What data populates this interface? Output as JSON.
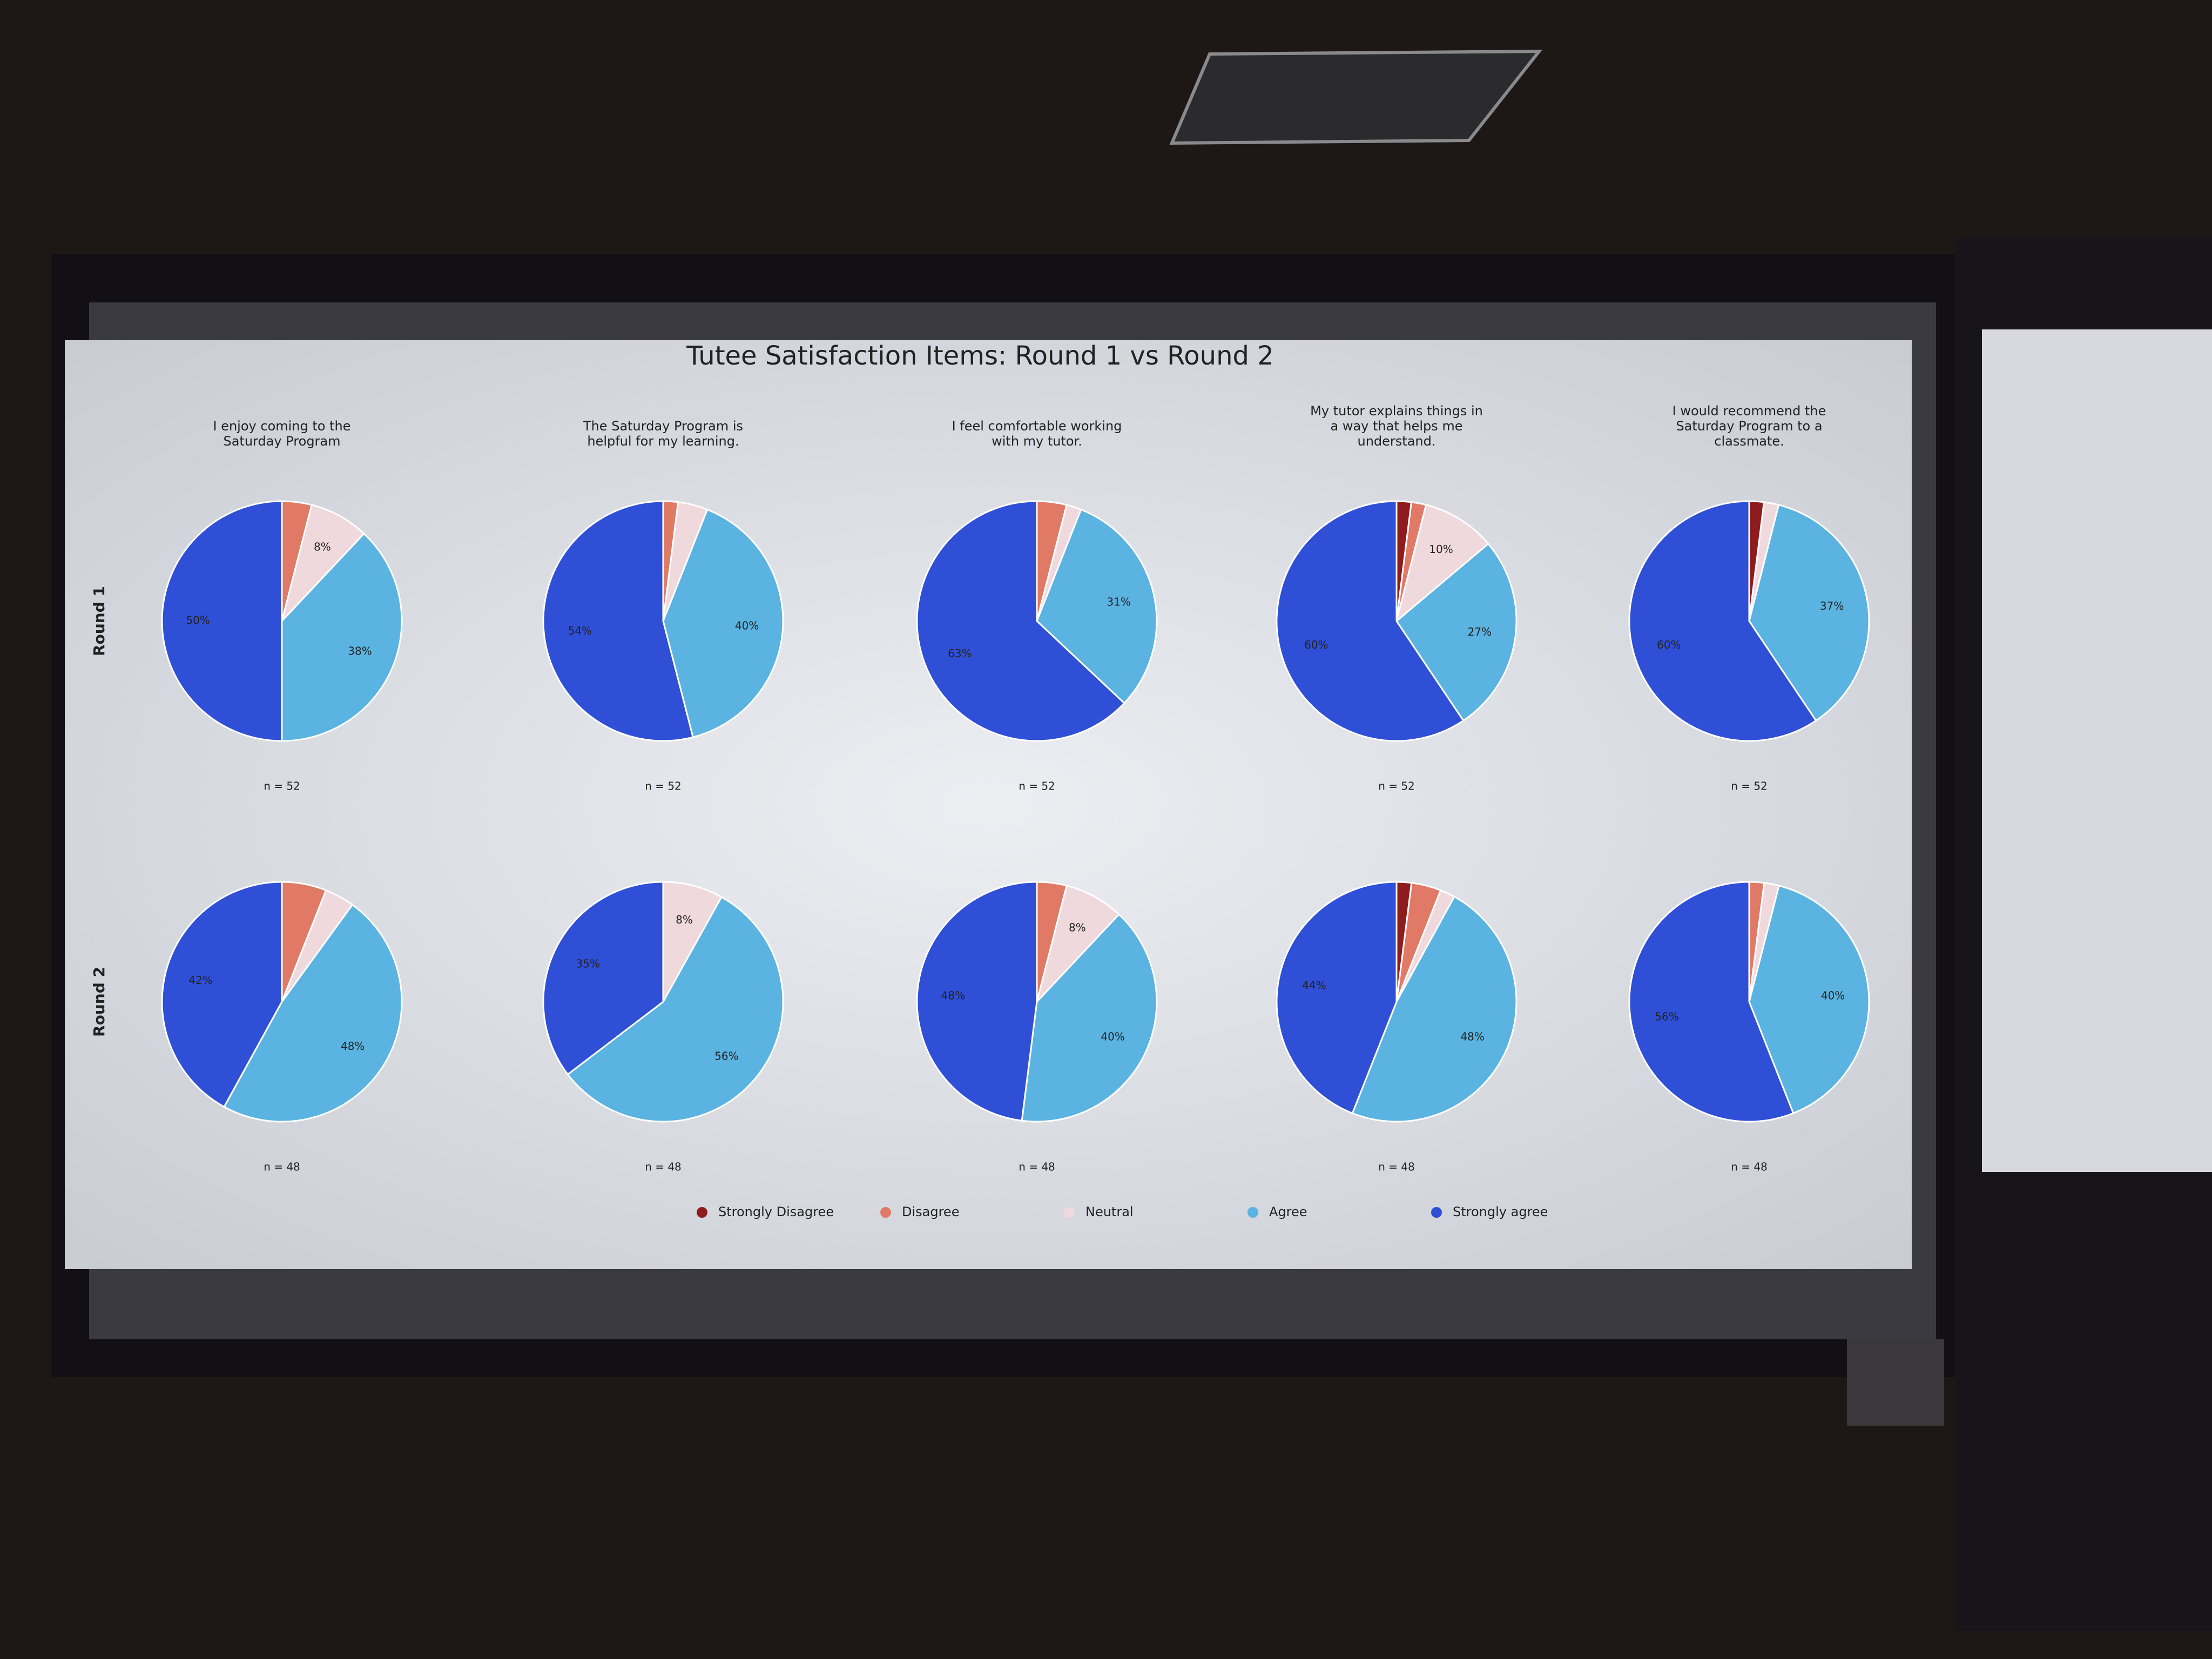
{
  "title": "Tutee Satisfaction Items: Round 1 vs Round 2",
  "row_labels": [
    "Round 1",
    "Round 2"
  ],
  "categories": [
    "Strongly Disagree",
    "Disagree",
    "Neutral",
    "Agree",
    "Strongly agree"
  ],
  "colors": [
    "#8e1c1c",
    "#e07a66",
    "#efd9dd",
    "#5ab3e0",
    "#2f4fd6"
  ],
  "chart_data": [
    {
      "type": "pie",
      "title": [
        "I enjoy coming to the",
        "Saturday Program"
      ],
      "values": [
        0,
        4,
        8,
        38,
        50
      ],
      "value_labels": [
        null,
        null,
        "8%",
        "38%",
        "50%"
      ],
      "note": "n = 52"
    },
    {
      "type": "pie",
      "title": [
        "The Saturday Program is",
        "helpful for my learning."
      ],
      "values": [
        0,
        2,
        4,
        40,
        54
      ],
      "value_labels": [
        null,
        null,
        null,
        "40%",
        "54%"
      ],
      "note": "n = 52"
    },
    {
      "type": "pie",
      "title": [
        "I feel comfortable working",
        "with my tutor."
      ],
      "values": [
        0,
        4,
        2,
        31,
        63
      ],
      "value_labels": [
        null,
        null,
        null,
        "31%",
        "63%"
      ],
      "note": "n = 52"
    },
    {
      "type": "pie",
      "title": [
        "My tutor explains things in",
        "a way that helps me",
        "understand."
      ],
      "values": [
        2,
        2,
        10,
        27,
        60
      ],
      "value_labels": [
        null,
        null,
        "10%",
        "27%",
        "60%"
      ],
      "note": "n = 52"
    },
    {
      "type": "pie",
      "title": [
        "I would recommend the",
        "Saturday Program to a",
        "classmate."
      ],
      "values": [
        2,
        0,
        2,
        37,
        60
      ],
      "value_labels": [
        null,
        null,
        null,
        "37%",
        "60%"
      ],
      "note": "n = 52"
    },
    {
      "type": "pie",
      "values": [
        0,
        6,
        4,
        48,
        42
      ],
      "value_labels": [
        null,
        null,
        null,
        "48%",
        "42%"
      ],
      "note": "n = 48"
    },
    {
      "type": "pie",
      "values": [
        0,
        0,
        8,
        56,
        35
      ],
      "value_labels": [
        null,
        null,
        "8%",
        "56%",
        "35%"
      ],
      "note": "n = 48"
    },
    {
      "type": "pie",
      "values": [
        0,
        4,
        8,
        40,
        48
      ],
      "value_labels": [
        null,
        null,
        "8%",
        "40%",
        "48%"
      ],
      "note": "n = 48"
    },
    {
      "type": "pie",
      "values": [
        2,
        4,
        2,
        48,
        44
      ],
      "value_labels": [
        null,
        null,
        null,
        "48%",
        "44%"
      ],
      "note": "n = 48"
    },
    {
      "type": "pie",
      "values": [
        0,
        2,
        2,
        40,
        56
      ],
      "value_labels": [
        null,
        null,
        null,
        "40%",
        "56%"
      ],
      "note": "n = 48"
    }
  ]
}
